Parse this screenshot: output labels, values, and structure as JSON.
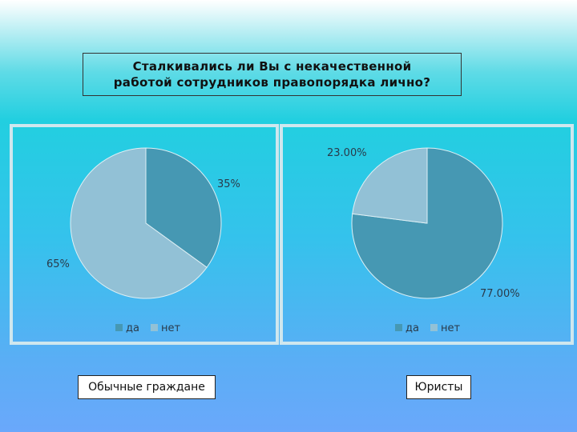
{
  "title": {
    "line1": "Сталкивались ли Вы с некачественной",
    "line2": "работой сотрудников правопорядка лично?"
  },
  "colors": {
    "da": "#4698b3",
    "net": "#92c1d6"
  },
  "panel_labels": {
    "left": "Обычные граждане",
    "right": "Юристы"
  },
  "chart_data": [
    {
      "type": "pie",
      "categories": [
        "да",
        "нет"
      ],
      "values": [
        35,
        65
      ],
      "data_labels": [
        "35%",
        "65%"
      ],
      "legend": [
        "да",
        "нет"
      ],
      "legend_position": "bottom"
    },
    {
      "type": "pie",
      "categories": [
        "да",
        "нет"
      ],
      "values": [
        77,
        23
      ],
      "data_labels": [
        "77.00%",
        "23.00%"
      ],
      "legend": [
        "да",
        "нет"
      ],
      "legend_position": "bottom"
    }
  ]
}
